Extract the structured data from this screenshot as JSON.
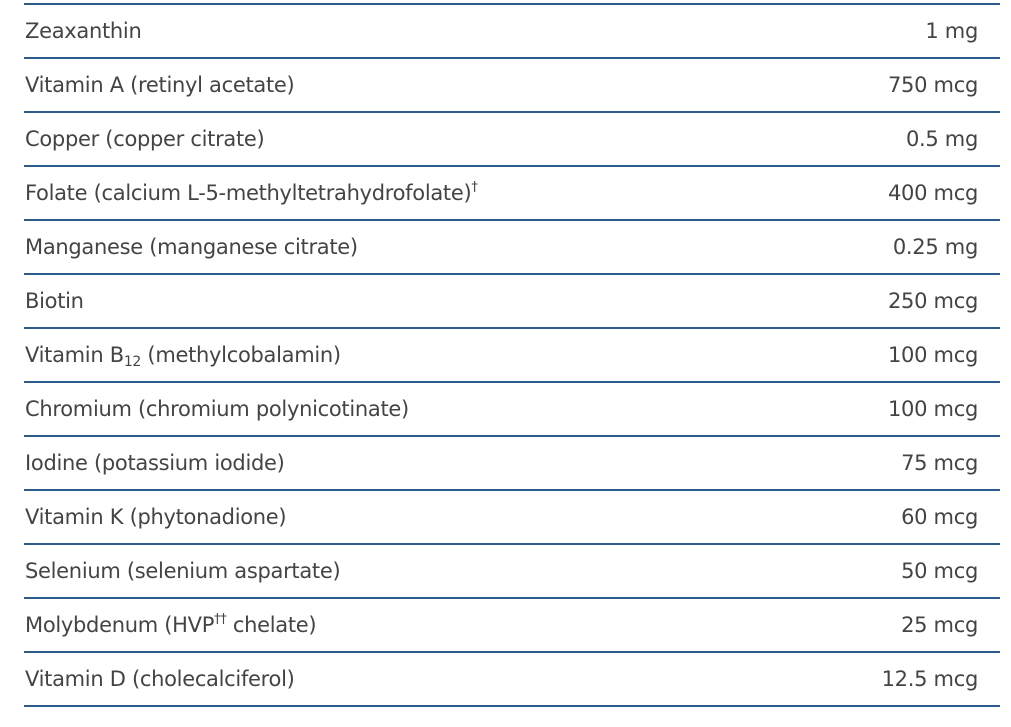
{
  "colors": {
    "rule": "#2b5d8c",
    "text": "#444444"
  },
  "rows": [
    {
      "name": [
        {
          "t": "Zeaxanthin"
        }
      ],
      "amount": "1 mg"
    },
    {
      "name": [
        {
          "t": "Vitamin A (retinyl acetate)"
        }
      ],
      "amount": "750 mcg"
    },
    {
      "name": [
        {
          "t": "Copper (copper citrate)"
        }
      ],
      "amount": "0.5 mg"
    },
    {
      "name": [
        {
          "t": "Folate (calcium L-5-methyltetrahydrofolate)"
        },
        {
          "t": "†",
          "k": "sup"
        }
      ],
      "amount": "400 mcg"
    },
    {
      "name": [
        {
          "t": "Manganese (manganese citrate)"
        }
      ],
      "amount": "0.25 mg"
    },
    {
      "name": [
        {
          "t": "Biotin"
        }
      ],
      "amount": "250 mcg"
    },
    {
      "name": [
        {
          "t": "Vitamin B"
        },
        {
          "t": "12",
          "k": "sub"
        },
        {
          "t": " (methylcobalamin)"
        }
      ],
      "amount": "100 mcg"
    },
    {
      "name": [
        {
          "t": "Chromium (chromium polynicotinate)"
        }
      ],
      "amount": "100 mcg"
    },
    {
      "name": [
        {
          "t": "Iodine (potassium iodide)"
        }
      ],
      "amount": "75 mcg"
    },
    {
      "name": [
        {
          "t": "Vitamin K (phytonadione)"
        }
      ],
      "amount": "60 mcg"
    },
    {
      "name": [
        {
          "t": "Selenium (selenium aspartate)"
        }
      ],
      "amount": "50 mcg"
    },
    {
      "name": [
        {
          "t": "Molybdenum (HVP"
        },
        {
          "t": "††",
          "k": "sup"
        },
        {
          "t": " chelate)"
        }
      ],
      "amount": "25 mcg"
    },
    {
      "name": [
        {
          "t": "Vitamin D (cholecalciferol)"
        }
      ],
      "amount": "12.5 mcg"
    }
  ]
}
